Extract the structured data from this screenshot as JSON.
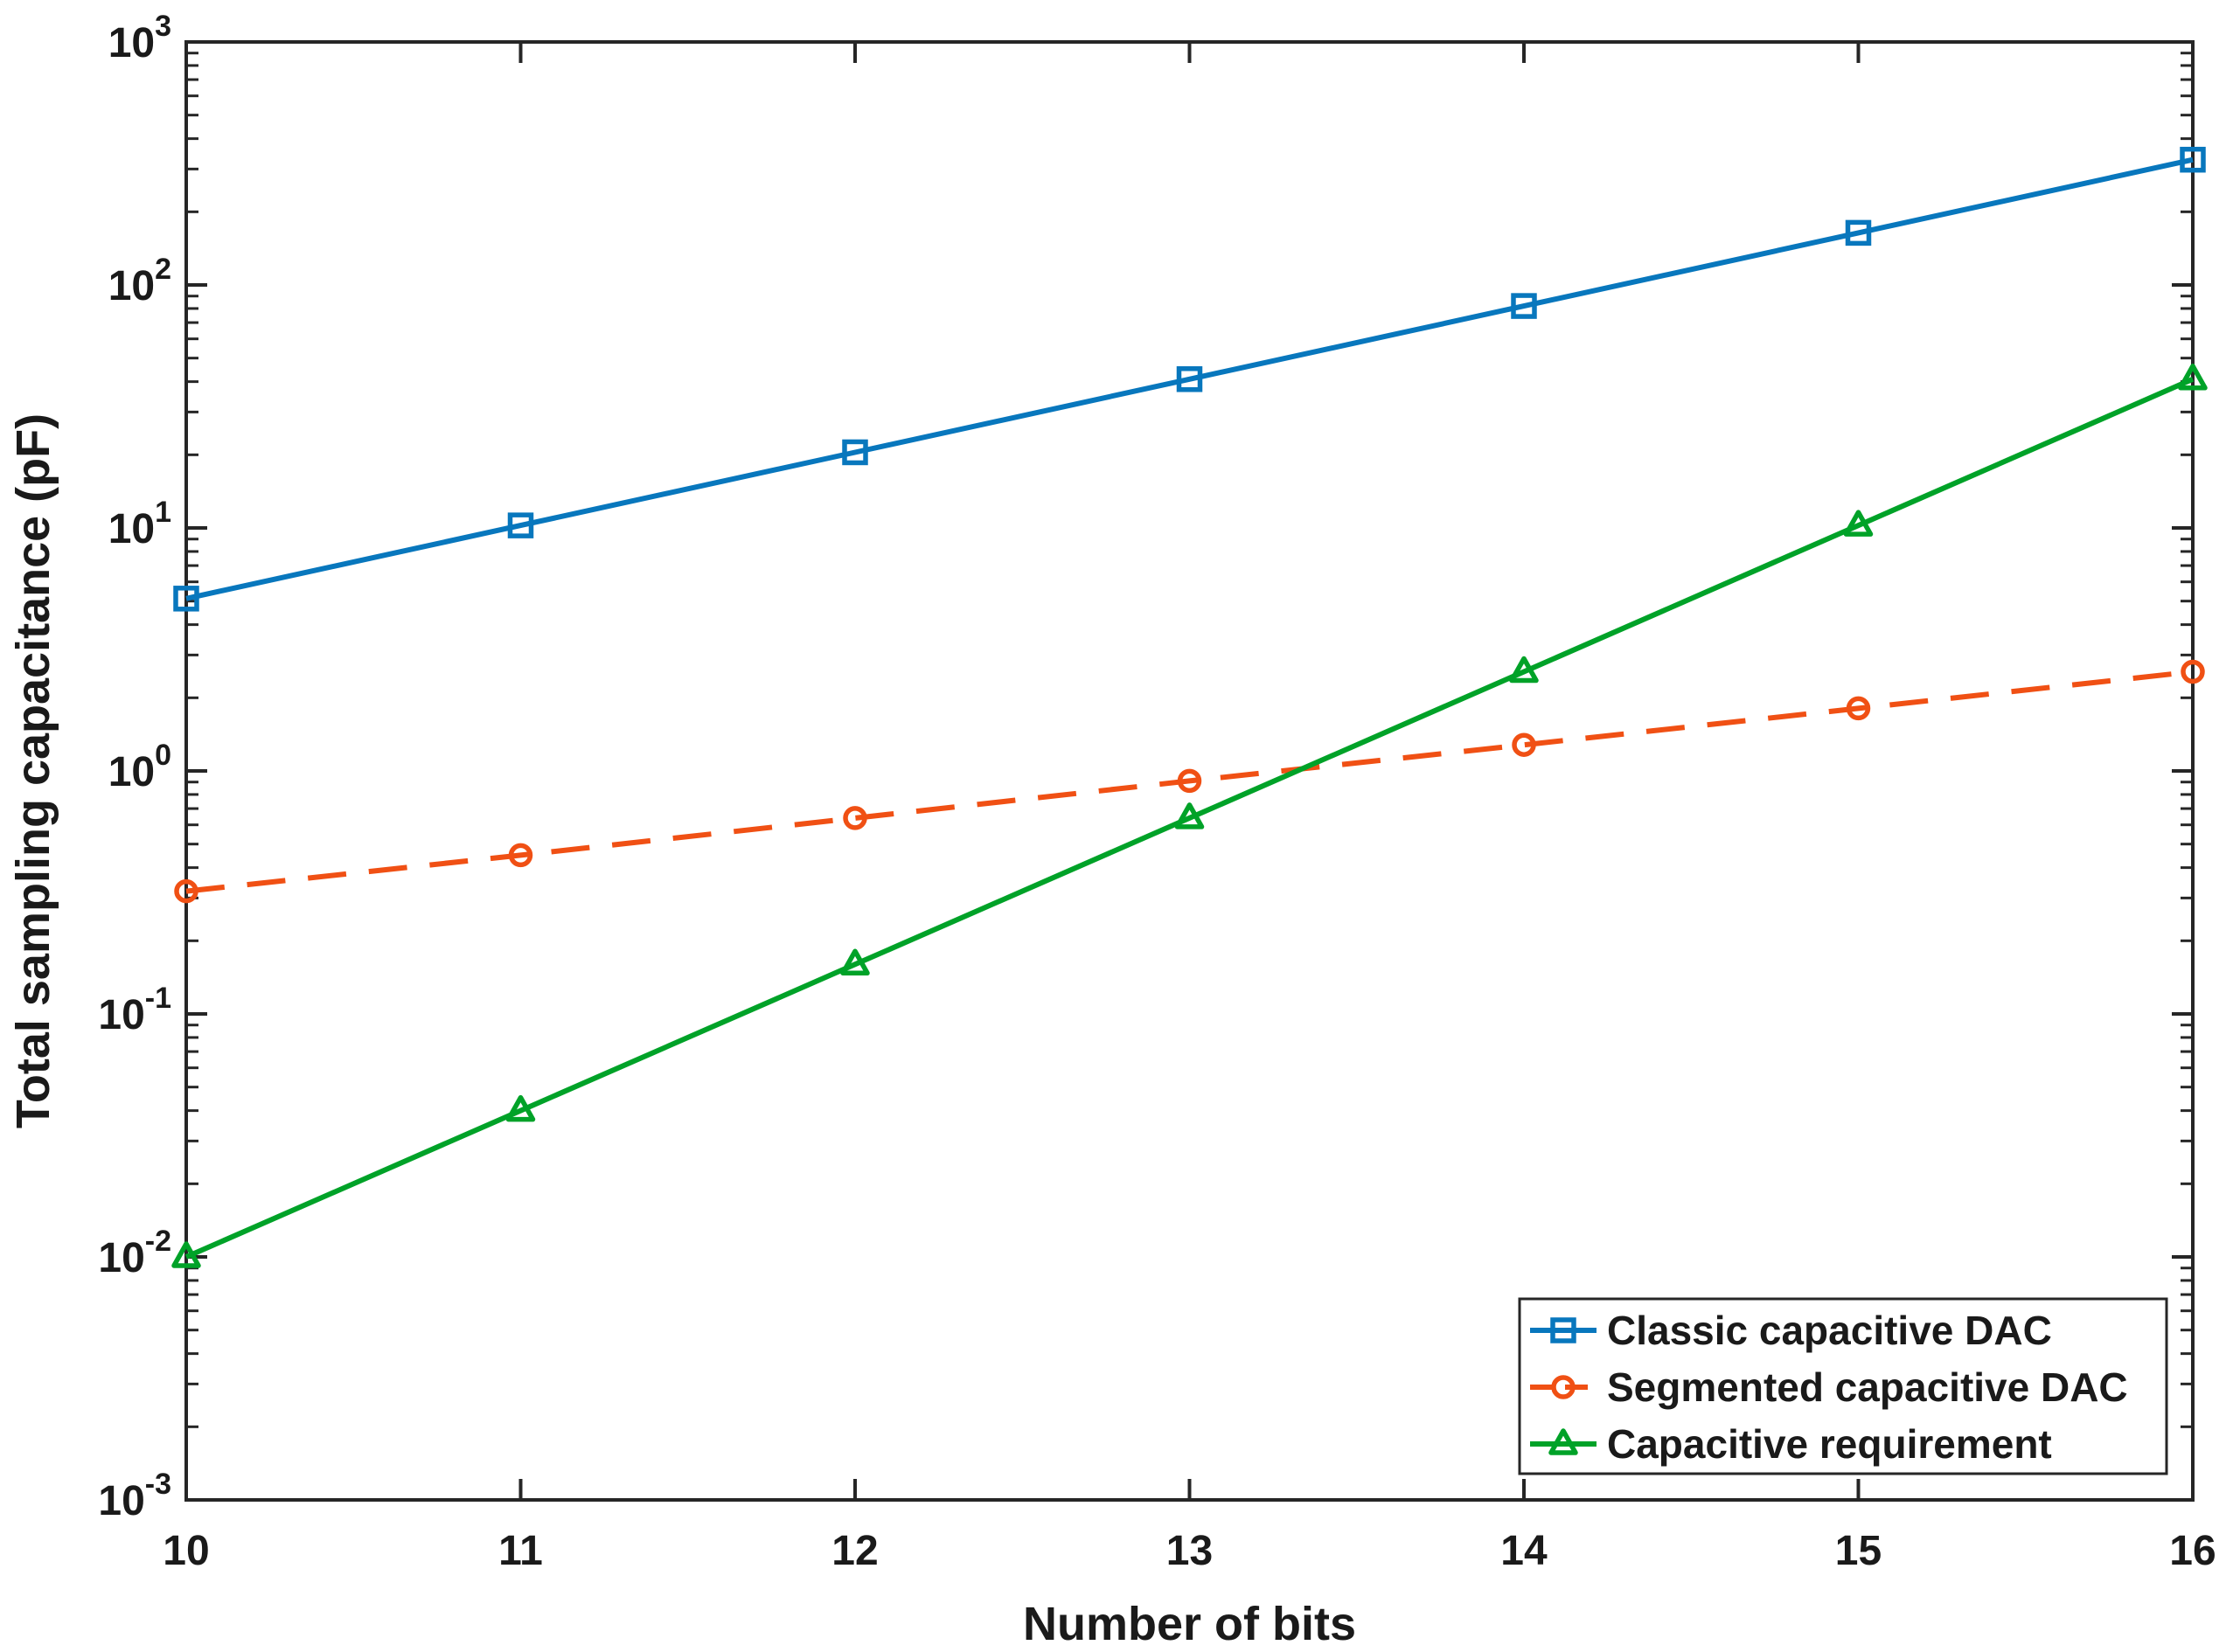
{
  "figure": {
    "background": "#ffffff",
    "axis_color": "#262626",
    "text_color": "#1a1a1a"
  },
  "chart_data": {
    "type": "line",
    "title": "",
    "xlabel": "Number of bits",
    "ylabel": "Total sampling capacitance (pF)",
    "x": [
      10,
      11,
      12,
      13,
      14,
      15,
      16
    ],
    "x_tick_labels": [
      "10",
      "11",
      "12",
      "13",
      "14",
      "15",
      "16"
    ],
    "xlim": [
      10,
      16
    ],
    "yscale": "log",
    "ylim": [
      0.001,
      1000
    ],
    "y_tick_base": "10",
    "y_tick_exponents": [
      3,
      2,
      1,
      0,
      -1,
      -2,
      -3
    ],
    "grid": false,
    "legend_position": "lower-right",
    "series": [
      {
        "name": "Classic capacitive DAC",
        "color": "#0877BD",
        "marker": "square",
        "linestyle": "solid",
        "values": [
          5.12,
          10.24,
          20.48,
          40.96,
          81.92,
          163.84,
          327.68
        ]
      },
      {
        "name": "Segmented capacitive DAC",
        "color": "#F05014",
        "marker": "circle",
        "linestyle": "dashed",
        "values": [
          0.32,
          0.45,
          0.64,
          0.91,
          1.28,
          1.81,
          2.56
        ]
      },
      {
        "name": "Capacitive requirement",
        "color": "#00A228",
        "marker": "triangle",
        "linestyle": "solid",
        "values": [
          0.01,
          0.04,
          0.16,
          0.64,
          2.56,
          10.24,
          40.96
        ]
      }
    ]
  }
}
